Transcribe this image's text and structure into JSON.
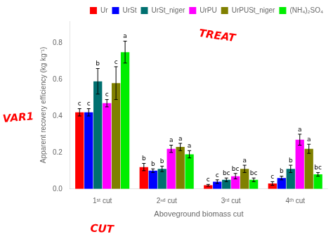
{
  "chart_data": {
    "type": "bar",
    "categories": [
      "1ˢᵗ cut",
      "2ⁿᵈ cut",
      "3ʳᵈ cut",
      "4ᵗʰ cut"
    ],
    "series": [
      {
        "name": "Ur",
        "color": "#ff0000",
        "values": [
          0.42,
          0.12,
          0.02,
          0.03
        ],
        "errors": [
          0.02,
          0.02,
          0.005,
          0.01
        ],
        "letters": [
          "c",
          "b",
          "c",
          "c"
        ]
      },
      {
        "name": "UrSt",
        "color": "#0000ff",
        "values": [
          0.42,
          0.1,
          0.04,
          0.06
        ],
        "errors": [
          0.02,
          0.01,
          0.01,
          0.01
        ],
        "letters": [
          "c",
          "b",
          "c",
          "b"
        ]
      },
      {
        "name": "UrSt_niger",
        "color": "#007070",
        "values": [
          0.59,
          0.11,
          0.05,
          0.11
        ],
        "errors": [
          0.07,
          0.015,
          0.01,
          0.02
        ],
        "letters": [
          "b",
          "b",
          "bc",
          "b"
        ]
      },
      {
        "name": "UrPU",
        "color": "#ff00ff",
        "values": [
          0.47,
          0.22,
          0.07,
          0.27
        ],
        "errors": [
          0.02,
          0.02,
          0.015,
          0.03
        ],
        "letters": [
          "c",
          "a",
          "bc",
          "a"
        ]
      },
      {
        "name": "UrPUSt_niger",
        "color": "#808000",
        "values": [
          0.58,
          0.23,
          0.11,
          0.22
        ],
        "errors": [
          0.09,
          0.02,
          0.02,
          0.025
        ],
        "letters": [
          "c",
          "a",
          "a",
          "a"
        ]
      },
      {
        "name": "(NH₄)₂SO₄",
        "color": "#00ee00",
        "values": [
          0.75,
          0.19,
          0.05,
          0.08
        ],
        "errors": [
          0.06,
          0.02,
          0.01,
          0.01
        ],
        "letters": [
          "a",
          "a",
          "bc",
          "bc"
        ]
      }
    ],
    "xlabel": "Aboveground biomass cut",
    "ylabel": "Apparent recovery efficiency (kg kg⁻¹)",
    "ylim": [
      0.0,
      0.92
    ],
    "yticks": [
      {
        "value": 0.0,
        "label": "0.0"
      },
      0.2,
      0.4,
      0.6,
      0.8
    ],
    "grid": false,
    "legend": "upper right",
    "annotations": [
      {
        "text": "TREAT",
        "color": "#ff0000"
      },
      {
        "text": "VAR1",
        "color": "#ff0000"
      },
      {
        "text": "CUT",
        "color": "#ff0000"
      }
    ]
  }
}
